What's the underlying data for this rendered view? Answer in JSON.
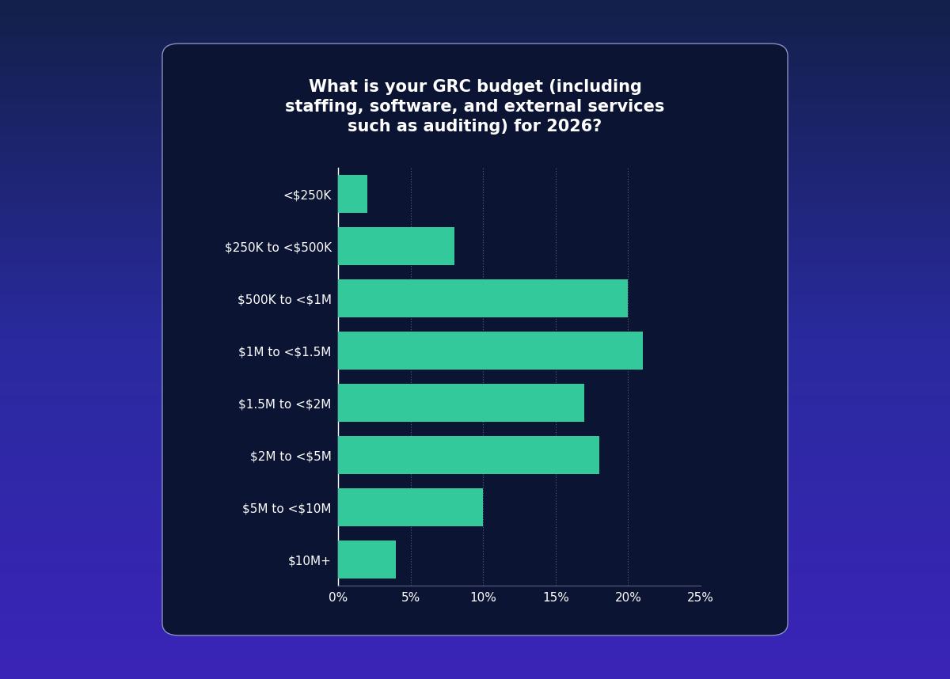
{
  "chart_data": {
    "type": "bar",
    "orientation": "horizontal",
    "title": "What is your GRC budget (including\nstaffing, software, and external services\nsuch as auditing) for 2026?",
    "categories": [
      "<$250K",
      "$250K to <$500K",
      "$500K to <$1M",
      "$1M to <$1.5M",
      "$1.5M to <$2M",
      "$2M to <$5M",
      "$5M to <$10M",
      "$10M+"
    ],
    "values": [
      2,
      8,
      20,
      21,
      17,
      18,
      10,
      4
    ],
    "color": "#33c99b",
    "xlim": [
      0,
      25
    ],
    "xticks": [
      {
        "value": 0,
        "label": "0%"
      },
      {
        "value": 5,
        "label": "5%"
      },
      {
        "value": 10,
        "label": "10%"
      },
      {
        "value": 15,
        "label": "15%"
      },
      {
        "value": 20,
        "label": "20%"
      },
      {
        "value": 25,
        "label": "25%"
      }
    ],
    "grid": true
  }
}
